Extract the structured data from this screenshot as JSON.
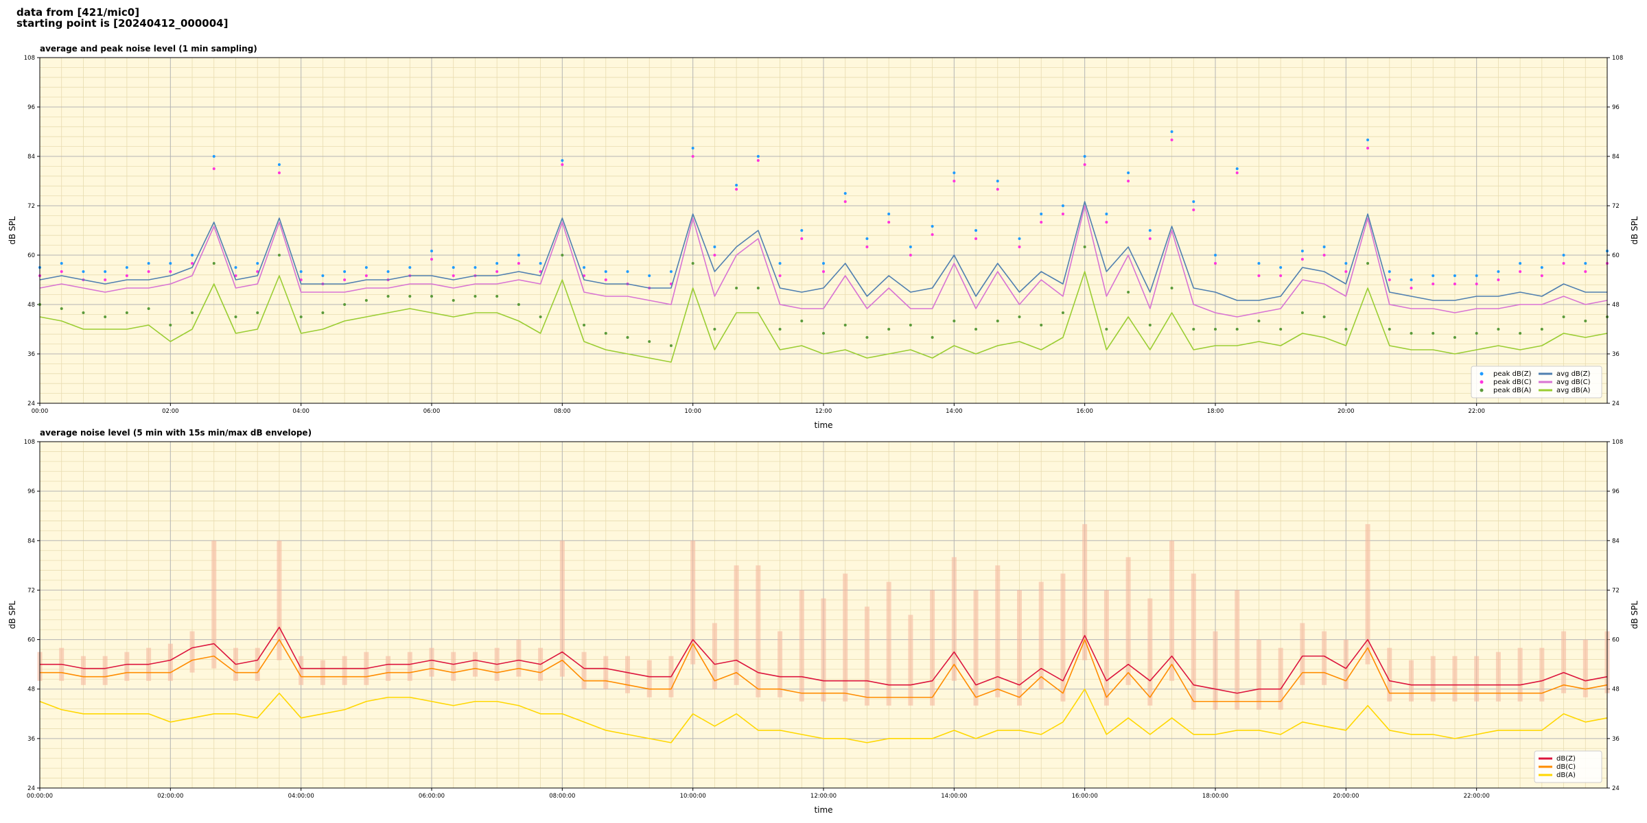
{
  "header": [
    "data from [421/mic0]",
    "starting point is [20240412_000004]"
  ],
  "chart_data": [
    {
      "type": "line",
      "title": "average and peak noise level (1 min sampling)",
      "xlabel": "time",
      "ylabel": "dB SPL",
      "background": "#fff8dc",
      "grid": true,
      "legend": "lower right",
      "legend_columns": 2,
      "xlim": [
        0,
        1440
      ],
      "xticks": [
        {
          "value": 0,
          "label": "00:00"
        },
        {
          "value": 120,
          "label": "02:00"
        },
        {
          "value": 240,
          "label": "04:00"
        },
        {
          "value": 360,
          "label": "06:00"
        },
        {
          "value": 480,
          "label": "08:00"
        },
        {
          "value": 600,
          "label": "10:00"
        },
        {
          "value": 720,
          "label": "12:00"
        },
        {
          "value": 840,
          "label": "14:00"
        },
        {
          "value": 960,
          "label": "16:00"
        },
        {
          "value": 1080,
          "label": "18:00"
        },
        {
          "value": 1200,
          "label": "20:00"
        },
        {
          "value": 1320,
          "label": "22:00"
        }
      ],
      "ylim": [
        24,
        108
      ],
      "yticks": [
        24,
        36,
        48,
        60,
        72,
        84,
        96,
        108
      ],
      "x": [
        0,
        20,
        40,
        60,
        80,
        100,
        120,
        140,
        160,
        180,
        200,
        220,
        240,
        260,
        280,
        300,
        320,
        340,
        360,
        380,
        400,
        420,
        440,
        460,
        480,
        500,
        520,
        540,
        560,
        580,
        600,
        620,
        640,
        660,
        680,
        700,
        720,
        740,
        760,
        780,
        800,
        820,
        840,
        860,
        880,
        900,
        920,
        940,
        960,
        980,
        1000,
        1020,
        1040,
        1060,
        1080,
        1100,
        1120,
        1140,
        1160,
        1180,
        1200,
        1220,
        1240,
        1260,
        1280,
        1300,
        1320,
        1340,
        1360,
        1380,
        1400,
        1420,
        1440
      ],
      "series": [
        {
          "name": "peak dB(Z)",
          "mode": "markers",
          "color": "#1f9bff",
          "values": [
            57,
            58,
            56,
            56,
            57,
            58,
            58,
            60,
            84,
            57,
            58,
            82,
            56,
            55,
            56,
            57,
            56,
            57,
            61,
            57,
            57,
            58,
            60,
            58,
            83,
            57,
            56,
            56,
            55,
            56,
            86,
            62,
            77,
            84,
            58,
            66,
            58,
            75,
            64,
            70,
            62,
            67,
            80,
            66,
            78,
            64,
            70,
            72,
            84,
            70,
            80,
            66,
            90,
            73,
            60,
            81,
            58,
            57,
            61,
            62,
            58,
            88,
            56,
            54,
            55,
            55,
            55,
            56,
            58,
            57,
            60,
            58,
            61
          ]
        },
        {
          "name": "peak dB(C)",
          "mode": "markers",
          "color": "#ff33dd",
          "values": [
            55,
            56,
            54,
            54,
            55,
            56,
            56,
            58,
            81,
            55,
            56,
            80,
            54,
            53,
            54,
            55,
            54,
            55,
            59,
            55,
            55,
            56,
            58,
            56,
            82,
            55,
            54,
            53,
            52,
            53,
            84,
            60,
            76,
            83,
            55,
            64,
            56,
            73,
            62,
            68,
            60,
            65,
            78,
            64,
            76,
            62,
            68,
            70,
            82,
            68,
            78,
            64,
            88,
            71,
            58,
            80,
            55,
            55,
            59,
            60,
            56,
            86,
            54,
            52,
            53,
            53,
            53,
            54,
            56,
            55,
            58,
            56,
            58
          ]
        },
        {
          "name": "peak dB(A)",
          "mode": "markers",
          "color": "#5a9a3a",
          "values": [
            48,
            47,
            46,
            45,
            46,
            47,
            43,
            46,
            58,
            45,
            46,
            60,
            45,
            46,
            48,
            49,
            50,
            50,
            50,
            49,
            50,
            50,
            48,
            45,
            60,
            43,
            41,
            40,
            39,
            38,
            58,
            42,
            52,
            52,
            42,
            44,
            41,
            43,
            40,
            42,
            43,
            40,
            44,
            42,
            44,
            45,
            43,
            46,
            62,
            42,
            51,
            43,
            52,
            42,
            42,
            42,
            44,
            42,
            46,
            45,
            42,
            58,
            42,
            41,
            41,
            40,
            41,
            42,
            41,
            42,
            45,
            44,
            45
          ]
        },
        {
          "name": "avg dB(Z)",
          "mode": "lines",
          "color": "#4f7fb0",
          "values": [
            54,
            55,
            54,
            53,
            54,
            54,
            55,
            57,
            68,
            54,
            55,
            69,
            53,
            53,
            53,
            54,
            54,
            55,
            55,
            54,
            55,
            55,
            56,
            55,
            69,
            54,
            53,
            53,
            52,
            52,
            70,
            56,
            62,
            66,
            52,
            51,
            52,
            58,
            50,
            55,
            51,
            52,
            60,
            50,
            58,
            51,
            56,
            53,
            73,
            56,
            62,
            51,
            67,
            52,
            51,
            49,
            49,
            50,
            57,
            56,
            53,
            70,
            51,
            50,
            49,
            49,
            50,
            50,
            51,
            50,
            53,
            51,
            51
          ]
        },
        {
          "name": "avg dB(C)",
          "mode": "lines",
          "color": "#d873d3",
          "values": [
            52,
            53,
            52,
            51,
            52,
            52,
            53,
            55,
            67,
            52,
            53,
            68,
            51,
            51,
            51,
            52,
            52,
            53,
            53,
            52,
            53,
            53,
            54,
            53,
            68,
            51,
            50,
            50,
            49,
            48,
            69,
            50,
            60,
            64,
            48,
            47,
            47,
            55,
            47,
            52,
            47,
            47,
            58,
            47,
            56,
            48,
            54,
            50,
            72,
            50,
            60,
            47,
            66,
            48,
            46,
            45,
            46,
            47,
            54,
            53,
            50,
            69,
            48,
            47,
            47,
            46,
            47,
            47,
            48,
            48,
            50,
            48,
            49
          ]
        },
        {
          "name": "avg dB(A)",
          "mode": "lines",
          "color": "#9acd32",
          "values": [
            45,
            44,
            42,
            42,
            42,
            43,
            39,
            42,
            53,
            41,
            42,
            55,
            41,
            42,
            44,
            45,
            46,
            47,
            46,
            45,
            46,
            46,
            44,
            41,
            54,
            39,
            37,
            36,
            35,
            34,
            52,
            37,
            46,
            46,
            37,
            38,
            36,
            37,
            35,
            36,
            37,
            35,
            38,
            36,
            38,
            39,
            37,
            40,
            56,
            37,
            45,
            37,
            46,
            37,
            38,
            38,
            39,
            38,
            41,
            40,
            38,
            52,
            38,
            37,
            37,
            36,
            37,
            38,
            37,
            38,
            41,
            40,
            41
          ]
        }
      ]
    },
    {
      "type": "line",
      "title": "average noise level (5 min with 15s min/max dB envelope)",
      "xlabel": "time",
      "ylabel": "dB SPL",
      "background": "#fff8dc",
      "grid": true,
      "legend": "lower right",
      "legend_columns": 1,
      "xlim": [
        0,
        1440
      ],
      "xticks": [
        {
          "value": 0,
          "label": "00:00:00"
        },
        {
          "value": 120,
          "label": "02:00:00"
        },
        {
          "value": 240,
          "label": "04:00:00"
        },
        {
          "value": 360,
          "label": "06:00:00"
        },
        {
          "value": 480,
          "label": "08:00:00"
        },
        {
          "value": 600,
          "label": "10:00:00"
        },
        {
          "value": 720,
          "label": "12:00:00"
        },
        {
          "value": 840,
          "label": "14:00:00"
        },
        {
          "value": 960,
          "label": "16:00:00"
        },
        {
          "value": 1080,
          "label": "18:00:00"
        },
        {
          "value": 1200,
          "label": "20:00:00"
        },
        {
          "value": 1320,
          "label": "22:00:00"
        }
      ],
      "ylim": [
        24,
        108
      ],
      "yticks": [
        24,
        36,
        48,
        60,
        72,
        84,
        96,
        108
      ],
      "x": [
        0,
        20,
        40,
        60,
        80,
        100,
        120,
        140,
        160,
        180,
        200,
        220,
        240,
        260,
        280,
        300,
        320,
        340,
        360,
        380,
        400,
        420,
        440,
        460,
        480,
        500,
        520,
        540,
        560,
        580,
        600,
        620,
        640,
        660,
        680,
        700,
        720,
        740,
        760,
        780,
        800,
        820,
        840,
        860,
        880,
        900,
        920,
        940,
        960,
        980,
        1000,
        1020,
        1040,
        1060,
        1080,
        1100,
        1120,
        1140,
        1160,
        1180,
        1200,
        1220,
        1240,
        1260,
        1280,
        1300,
        1320,
        1340,
        1360,
        1380,
        1400,
        1420,
        1440
      ],
      "envelope": {
        "color": "#f5b9a0",
        "max": [
          57,
          58,
          56,
          56,
          57,
          58,
          59,
          62,
          84,
          58,
          58,
          84,
          56,
          55,
          56,
          57,
          56,
          57,
          58,
          57,
          57,
          58,
          60,
          58,
          84,
          57,
          56,
          56,
          55,
          56,
          84,
          64,
          78,
          78,
          62,
          72,
          70,
          76,
          68,
          74,
          66,
          72,
          80,
          72,
          78,
          72,
          74,
          76,
          88,
          72,
          80,
          70,
          84,
          76,
          62,
          72,
          60,
          58,
          64,
          62,
          60,
          88,
          58,
          55,
          56,
          56,
          56,
          57,
          58,
          58,
          62,
          60,
          62
        ],
        "min": [
          50,
          50,
          49,
          49,
          50,
          50,
          50,
          52,
          53,
          50,
          50,
          55,
          49,
          49,
          49,
          49,
          50,
          50,
          51,
          50,
          51,
          50,
          51,
          50,
          51,
          48,
          48,
          47,
          46,
          46,
          54,
          48,
          49,
          46,
          46,
          45,
          45,
          45,
          44,
          44,
          44,
          44,
          50,
          44,
          46,
          44,
          48,
          45,
          55,
          44,
          49,
          44,
          50,
          43,
          43,
          43,
          43,
          43,
          49,
          49,
          48,
          54,
          45,
          45,
          45,
          45,
          45,
          45,
          45,
          45,
          47,
          46,
          47
        ]
      },
      "series": [
        {
          "name": "dB(Z)",
          "mode": "lines",
          "color": "#dc143c",
          "values": [
            54,
            54,
            53,
            53,
            54,
            54,
            55,
            58,
            59,
            54,
            55,
            63,
            53,
            53,
            53,
            53,
            54,
            54,
            55,
            54,
            55,
            54,
            55,
            54,
            57,
            53,
            53,
            52,
            51,
            51,
            60,
            54,
            55,
            52,
            51,
            51,
            50,
            50,
            50,
            49,
            49,
            50,
            57,
            49,
            51,
            49,
            53,
            50,
            61,
            50,
            54,
            50,
            56,
            49,
            48,
            47,
            48,
            48,
            56,
            56,
            53,
            60,
            50,
            49,
            49,
            49,
            49,
            49,
            49,
            50,
            52,
            50,
            51
          ]
        },
        {
          "name": "dB(C)",
          "mode": "lines",
          "color": "#ff8c00",
          "values": [
            52,
            52,
            51,
            51,
            52,
            52,
            52,
            55,
            56,
            52,
            52,
            60,
            51,
            51,
            51,
            51,
            52,
            52,
            53,
            52,
            53,
            52,
            53,
            52,
            55,
            50,
            50,
            49,
            48,
            48,
            59,
            50,
            52,
            48,
            48,
            47,
            47,
            47,
            46,
            46,
            46,
            46,
            54,
            46,
            48,
            46,
            51,
            47,
            60,
            46,
            52,
            46,
            54,
            45,
            45,
            45,
            45,
            45,
            52,
            52,
            50,
            58,
            47,
            47,
            47,
            47,
            47,
            47,
            47,
            47,
            49,
            48,
            49
          ]
        },
        {
          "name": "dB(A)",
          "mode": "lines",
          "color": "#ffd700",
          "values": [
            45,
            43,
            42,
            42,
            42,
            42,
            40,
            41,
            42,
            42,
            41,
            47,
            41,
            42,
            43,
            45,
            46,
            46,
            45,
            44,
            45,
            45,
            44,
            42,
            42,
            40,
            38,
            37,
            36,
            35,
            42,
            39,
            42,
            38,
            38,
            37,
            36,
            36,
            35,
            36,
            36,
            36,
            38,
            36,
            38,
            38,
            37,
            40,
            48,
            37,
            41,
            37,
            41,
            37,
            37,
            38,
            38,
            37,
            40,
            39,
            38,
            44,
            38,
            37,
            37,
            36,
            37,
            38,
            38,
            38,
            42,
            40,
            41
          ]
        }
      ]
    }
  ]
}
